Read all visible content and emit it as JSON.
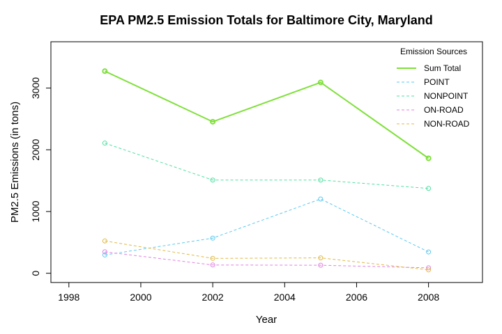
{
  "chart_data": {
    "type": "line",
    "title": "EPA PM2.5 Emission Totals for Baltimore City, Maryland",
    "xlabel": "Year",
    "ylabel": "PM2.5 Emissions (in tons)",
    "xlim": [
      1997.5,
      2009.5
    ],
    "ylim": [
      -150,
      3750
    ],
    "xticks": [
      1998,
      2000,
      2002,
      2004,
      2006,
      2008
    ],
    "yticks": [
      0,
      1000,
      2000,
      3000
    ],
    "grid": false,
    "legend": {
      "title": "Emission Sources",
      "position": "top-right"
    },
    "x": [
      1999,
      2002,
      2005,
      2008
    ],
    "series": [
      {
        "name": "Sum Total",
        "values": [
          3274,
          2454,
          3091,
          1862
        ],
        "color": "#7fe03a",
        "style": "solid"
      },
      {
        "name": "POINT",
        "values": [
          296,
          569,
          1203,
          345
        ],
        "color": "#5bc8f0",
        "style": "dashed"
      },
      {
        "name": "NONPOINT",
        "values": [
          2108,
          1510,
          1510,
          1374
        ],
        "color": "#4de0a0",
        "style": "dashed"
      },
      {
        "name": "ON-ROAD",
        "values": [
          347,
          134,
          130,
          88
        ],
        "color": "#e080e0",
        "style": "dashed"
      },
      {
        "name": "NON-ROAD",
        "values": [
          523,
          241,
          249,
          55
        ],
        "color": "#e0b840",
        "style": "dashed"
      }
    ]
  }
}
